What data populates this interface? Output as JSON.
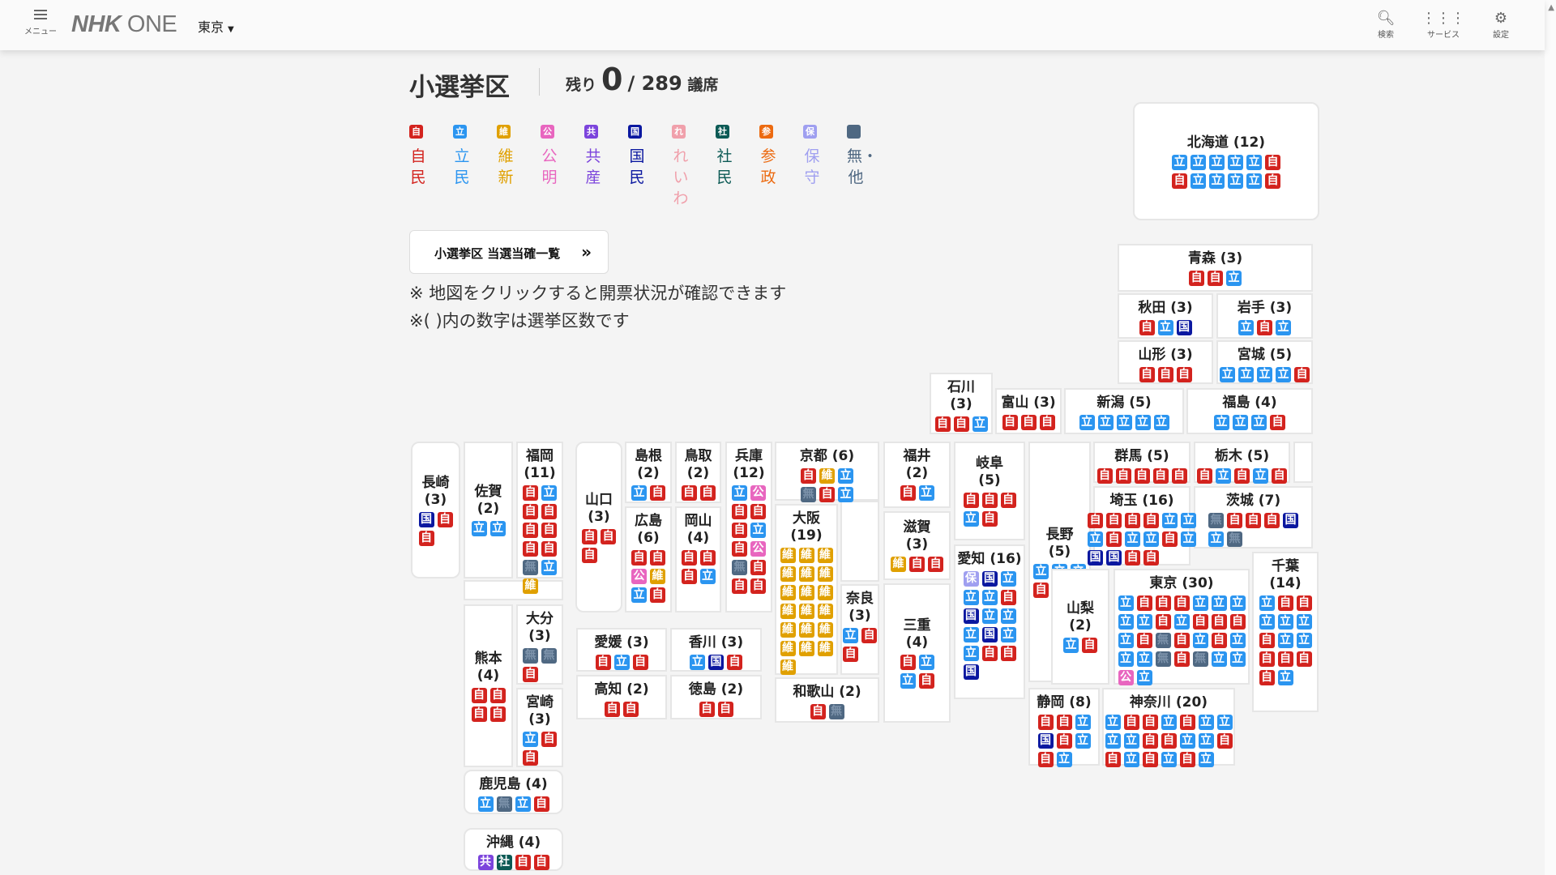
{
  "header": {
    "menu_label": "メニュー",
    "logo": "NHK ONE",
    "logo_bold": "NHK",
    "logo_rest": " ONE",
    "region": "東京",
    "search_label": "検索",
    "service_label": "サービス",
    "settings_label": "設定"
  },
  "page": {
    "title": "小選挙区",
    "remain_label": "残り",
    "remain_value": "0",
    "total": "/ 289",
    "seat_unit": "議席",
    "list_button": "小選挙区 当選当確一覧",
    "note1": "※ 地図をクリックすると開票状況が確認できます",
    "note2": "※( )内の数字は選挙区数です"
  },
  "parties": [
    {
      "key": "自",
      "badge": "自",
      "name": "自民",
      "color": "#d3231e"
    },
    {
      "key": "立",
      "badge": "立",
      "name": "立民",
      "color": "#2b95f0"
    },
    {
      "key": "維",
      "badge": "維",
      "name": "維新",
      "color": "#e0a000"
    },
    {
      "key": "公",
      "badge": "公",
      "name": "公明",
      "color": "#e866bf"
    },
    {
      "key": "共",
      "badge": "共",
      "name": "共産",
      "color": "#7c44dc"
    },
    {
      "key": "国",
      "badge": "国",
      "name": "国民",
      "color": "#0b18a0"
    },
    {
      "key": "れ",
      "badge": "れ",
      "name": "れいわ",
      "color": "#f0a0ab"
    },
    {
      "key": "社",
      "badge": "社",
      "name": "社民",
      "color": "#0c5a55"
    },
    {
      "key": "参",
      "badge": "参",
      "name": "参政",
      "color": "#ec6a10"
    },
    {
      "key": "保",
      "badge": "保",
      "name": "保守",
      "color": "#9f9ff0"
    },
    {
      "key": "無",
      "badge": "",
      "name": "無・他",
      "color": "#4f6882"
    }
  ],
  "prefectures": [
    {
      "name": "北海道",
      "seats": 12,
      "results": "立立立立立自自立立立立自"
    },
    {
      "name": "青森",
      "seats": 3,
      "results": "自自立"
    },
    {
      "name": "秋田",
      "seats": 3,
      "results": "自立国"
    },
    {
      "name": "岩手",
      "seats": 3,
      "results": "立自立"
    },
    {
      "name": "山形",
      "seats": 3,
      "results": "自自自"
    },
    {
      "name": "宮城",
      "seats": 5,
      "results": "立立立立自"
    },
    {
      "name": "石川",
      "seats": 3,
      "results": "自自立"
    },
    {
      "name": "富山",
      "seats": 3,
      "results": "自自自"
    },
    {
      "name": "新潟",
      "seats": 5,
      "results": "立立立立立"
    },
    {
      "name": "福島",
      "seats": 4,
      "results": "立立立自"
    },
    {
      "name": "長崎",
      "seats": 3,
      "results": "国自自"
    },
    {
      "name": "佐賀",
      "seats": 2,
      "results": "立立"
    },
    {
      "name": "福岡",
      "seats": 11,
      "results": "自立自自自自自自無立維"
    },
    {
      "name": "熊本",
      "seats": 4,
      "results": "自自自自"
    },
    {
      "name": "大分",
      "seats": 3,
      "results": "無無自"
    },
    {
      "name": "宮崎",
      "seats": 3,
      "results": "立自自"
    },
    {
      "name": "鹿児島",
      "seats": 4,
      "results": "立無立自"
    },
    {
      "name": "沖縄",
      "seats": 4,
      "results": "共社自自"
    },
    {
      "name": "山口",
      "seats": 3,
      "results": "自自自"
    },
    {
      "name": "島根",
      "seats": 2,
      "results": "立自"
    },
    {
      "name": "鳥取",
      "seats": 2,
      "results": "自自"
    },
    {
      "name": "広島",
      "seats": 6,
      "results": "自自公維立自"
    },
    {
      "name": "岡山",
      "seats": 4,
      "results": "自自自立"
    },
    {
      "name": "兵庫",
      "seats": 12,
      "results": "立公自自自立自公無自自自"
    },
    {
      "name": "愛媛",
      "seats": 3,
      "results": "自立自"
    },
    {
      "name": "香川",
      "seats": 3,
      "results": "立国自"
    },
    {
      "name": "高知",
      "seats": 2,
      "results": "自自"
    },
    {
      "name": "徳島",
      "seats": 2,
      "results": "自自"
    },
    {
      "name": "京都",
      "seats": 6,
      "results": "自維立無自立"
    },
    {
      "name": "大阪",
      "seats": 19,
      "results": "維維維維維維維維維維維維維維維維維維維"
    },
    {
      "name": "奈良",
      "seats": 3,
      "results": "立自自"
    },
    {
      "name": "和歌山",
      "seats": 2,
      "results": "自無"
    },
    {
      "name": "福井",
      "seats": 2,
      "results": "自立"
    },
    {
      "name": "滋賀",
      "seats": 3,
      "results": "維自自"
    },
    {
      "name": "三重",
      "seats": 4,
      "results": "自立立自"
    },
    {
      "name": "岐阜",
      "seats": 5,
      "results": "自自自立自"
    },
    {
      "name": "愛知",
      "seats": 16,
      "results": "保国立立立自国立立立国立立自自国"
    },
    {
      "name": "長野",
      "seats": 5,
      "results": "立立立自自"
    },
    {
      "name": "群馬",
      "seats": 5,
      "results": "自自自自自"
    },
    {
      "name": "栃木",
      "seats": 5,
      "results": "自立自立自"
    },
    {
      "name": "茨城",
      "seats": 7,
      "results": "無自自自国立無"
    },
    {
      "name": "埼玉",
      "seats": 16,
      "results": "自自自自立立立自立立自立国国自自"
    },
    {
      "name": "山梨",
      "seats": 2,
      "results": "立自"
    },
    {
      "name": "東京",
      "seats": 30,
      "results": "立自自自立立立立立自立自自自立自無自立自立立立無自無立立公立"
    },
    {
      "name": "千葉",
      "seats": 14,
      "results": "立自自立立立自立立自自自自立"
    },
    {
      "name": "静岡",
      "seats": 8,
      "results": "自自立国自立自立"
    },
    {
      "name": "神奈川",
      "seats": 20,
      "results": "立自自立自立立立立自自立立自自立自立自立"
    }
  ]
}
